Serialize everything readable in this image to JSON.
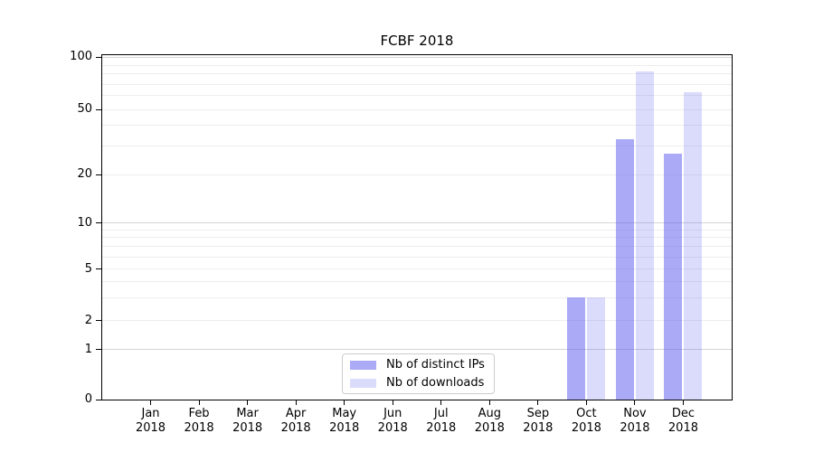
{
  "figure": {
    "title": "FCBF 2018"
  },
  "chart_data": {
    "type": "bar",
    "title": "FCBF 2018",
    "categories": [
      "Jan 2018",
      "Feb 2018",
      "Mar 2018",
      "Apr 2018",
      "May 2018",
      "Jun 2018",
      "Jul 2018",
      "Aug 2018",
      "Sep 2018",
      "Oct 2018",
      "Nov 2018",
      "Dec 2018"
    ],
    "series": [
      {
        "name": "Nb of distinct IPs",
        "color": "rgba(100,100,240,0.55)",
        "values": [
          0,
          0,
          0,
          0,
          0,
          0,
          0,
          0,
          0,
          3,
          33,
          27
        ]
      },
      {
        "name": "Nb of downloads",
        "color": "rgba(100,100,240,0.23)",
        "values": [
          0,
          0,
          0,
          0,
          0,
          0,
          0,
          0,
          0,
          3,
          83,
          63
        ]
      }
    ],
    "xlabel": "",
    "ylabel": "",
    "yscale": "symlog",
    "ylim": [
      0,
      100
    ],
    "yticks": [
      0,
      1,
      2,
      5,
      10,
      20,
      50,
      100
    ],
    "major_gridlines": [
      1,
      10,
      100
    ],
    "minor_gridlines": [
      2,
      3,
      4,
      5,
      6,
      7,
      8,
      9,
      20,
      30,
      40,
      50,
      60,
      70,
      80,
      90
    ],
    "grid": true,
    "legend_position": "lower center"
  },
  "legend": {
    "items": [
      {
        "label": "Nb of distinct IPs"
      },
      {
        "label": "Nb of downloads"
      }
    ]
  },
  "colors": {
    "bar_distinct_ips": "rgba(100,100,240,0.55)",
    "bar_downloads": "rgba(100,100,240,0.23)",
    "minor_gridline": "#ededed",
    "major_gridline": "#d4d4d4",
    "spine": "#000000",
    "legend_border": "#cccccc"
  }
}
